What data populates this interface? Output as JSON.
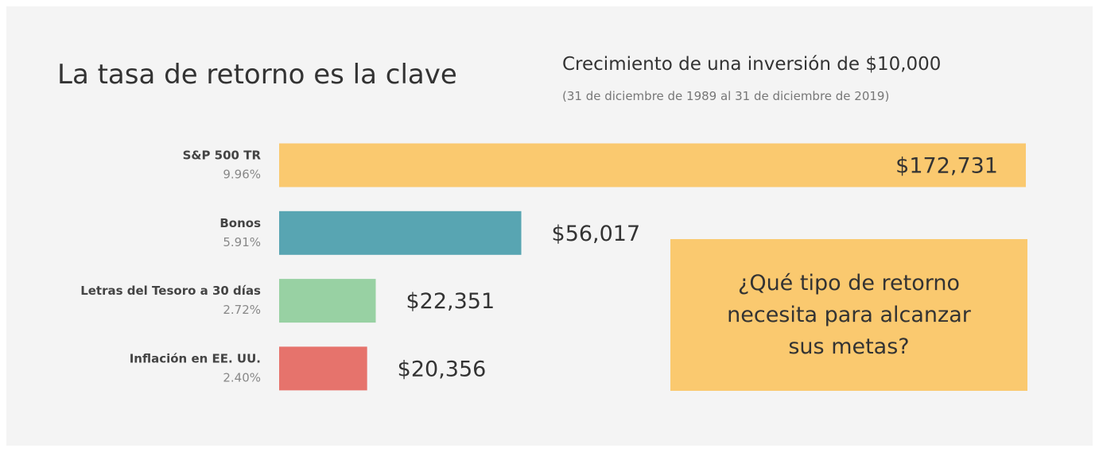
{
  "chart_data": {
    "type": "hbar",
    "title": "La tasa de retorno es la clave",
    "subtitle": "Crecimiento de una inversión de $10,000",
    "date_range": "(31 de diciembre de 1989 al 31 de diciembre de 2019)",
    "categories": [
      "S&P 500 TR",
      "Bonos",
      "Letras del Tesoro a 30 días",
      "Inflación en EE. UU."
    ],
    "category_notes": [
      "9.96%",
      "5.91%",
      "2.72%",
      "2.40%"
    ],
    "values": [
      172731,
      56017,
      22351,
      20356
    ],
    "value_labels": [
      "$172,731",
      "$56,017",
      "$22,351",
      "$20,356"
    ],
    "colors": [
      "#fac96f",
      "#58a5b2",
      "#98d1a3",
      "#e6736c"
    ],
    "annotation": "¿Qué tipo de retorno necesita para alcanzar sus metas?"
  }
}
